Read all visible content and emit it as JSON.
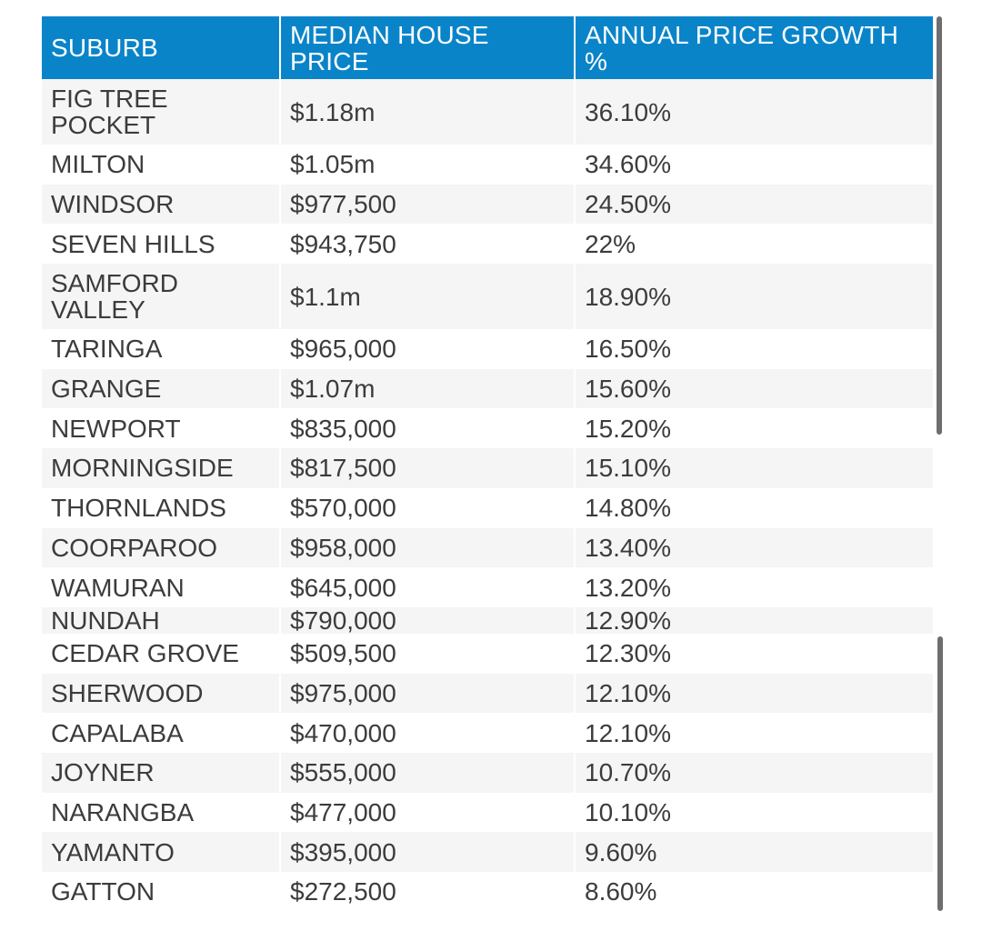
{
  "table": {
    "headers": [
      "SUBURB",
      "MEDIAN HOUSE PRICE",
      "ANNUAL PRICE GROWTH %"
    ],
    "rows": [
      {
        "suburb": "FIG TREE POCKET",
        "price": "$1.18m",
        "growth": "36.10%"
      },
      {
        "suburb": "MILTON",
        "price": "$1.05m",
        "growth": "34.60%"
      },
      {
        "suburb": "WINDSOR",
        "price": "$977,500",
        "growth": "24.50%"
      },
      {
        "suburb": "SEVEN HILLS",
        "price": "$943,750",
        "growth": "22%"
      },
      {
        "suburb": "SAMFORD VALLEY",
        "price": "$1.1m",
        "growth": "18.90%"
      },
      {
        "suburb": "TARINGA",
        "price": "$965,000",
        "growth": "16.50%"
      },
      {
        "suburb": "GRANGE",
        "price": "$1.07m",
        "growth": "15.60%"
      },
      {
        "suburb": "NEWPORT",
        "price": "$835,000",
        "growth": "15.20%"
      },
      {
        "suburb": "MORNINGSIDE",
        "price": "$817,500",
        "growth": "15.10%"
      },
      {
        "suburb": "THORNLANDS",
        "price": "$570,000",
        "growth": "14.80%"
      },
      {
        "suburb": "COORPAROO",
        "price": "$958,000",
        "growth": "13.40%"
      },
      {
        "suburb": "WAMURAN",
        "price": "$645,000",
        "growth": "13.20%"
      },
      {
        "suburb": "NUNDAH",
        "price": "$790,000",
        "growth": "12.90%"
      },
      {
        "suburb": "CEDAR GROVE",
        "price": "$509,500",
        "growth": "12.30%"
      },
      {
        "suburb": "SHERWOOD",
        "price": "$975,000",
        "growth": "12.10%"
      },
      {
        "suburb": "CAPALABA",
        "price": "$470,000",
        "growth": "12.10%"
      },
      {
        "suburb": "JOYNER",
        "price": "$555,000",
        "growth": "10.70%"
      },
      {
        "suburb": "NARANGBA",
        "price": "$477,000",
        "growth": "10.10%"
      },
      {
        "suburb": "YAMANTO",
        "price": "$395,000",
        "growth": "9.60%"
      },
      {
        "suburb": "GATTON",
        "price": "$272,500",
        "growth": "8.60%"
      }
    ]
  },
  "colors": {
    "header_bg": "#0a84c9",
    "header_text": "#ffffff",
    "row_alt": "#f5f5f5",
    "text": "#3c3c3c"
  }
}
